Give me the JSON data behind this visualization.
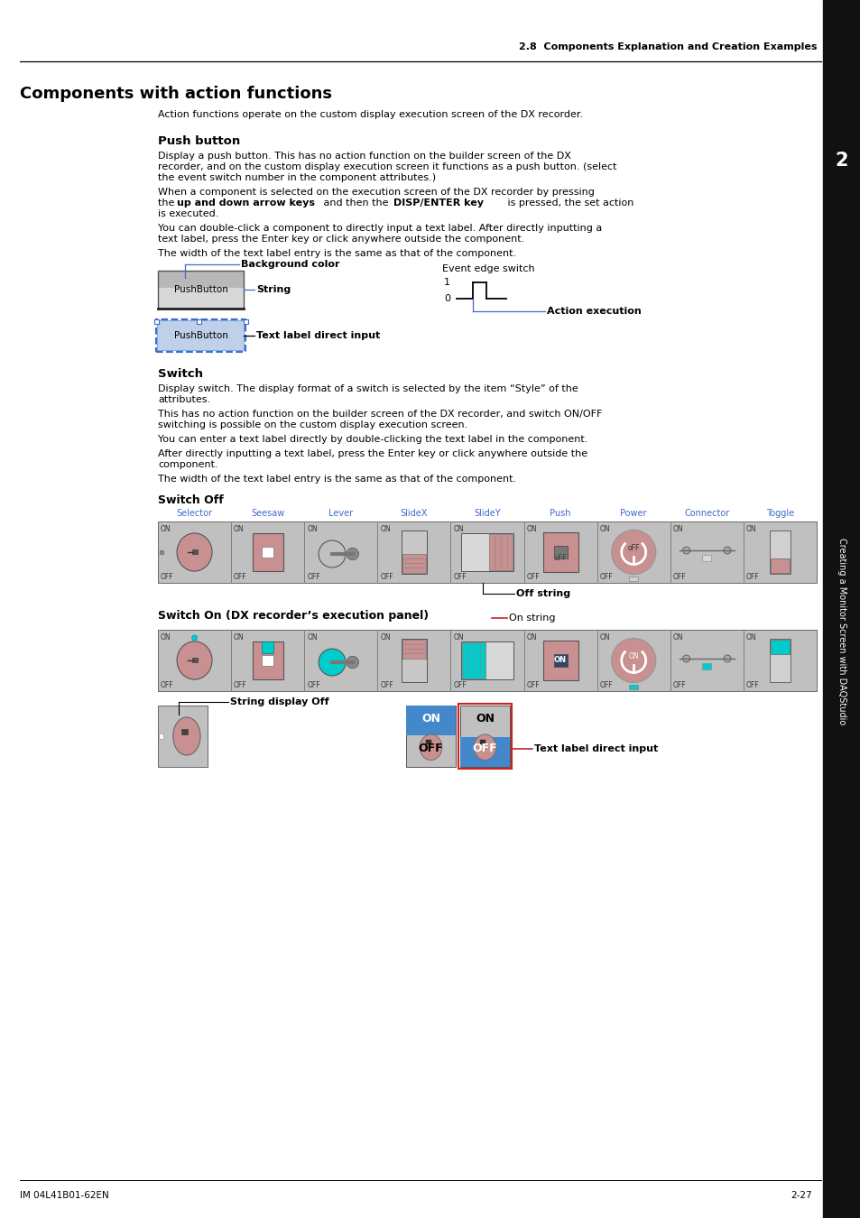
{
  "page_title": "2.8  Components Explanation and Creation Examples",
  "section_title": "Components with action functions",
  "intro_text": "Action functions operate on the custom display execution screen of the DX recorder.",
  "push_button_title": "Push button",
  "switch_title": "Switch",
  "switch_off_title": "Switch Off",
  "switch_on_title": "Switch On (DX recorder’s execution panel)",
  "switch_types": [
    "Selector",
    "Seesaw",
    "Lever",
    "SlideX",
    "SlideY",
    "Push",
    "Power",
    "Connector",
    "Toggle"
  ],
  "bg_color_label": "Background color",
  "string_label": "String",
  "event_edge_label": "Event edge switch",
  "action_exec_label": "Action execution",
  "text_direct_label": "Text label direct input",
  "off_string_label": "Off string",
  "on_string_label": "On string",
  "string_display_off_label": "String display Off",
  "text_label_direct_label": "Text label direct input",
  "page_num": "2-27",
  "doc_num": "IM 04L41B01-62EN",
  "sidebar_text": "Creating a Monitor Screen with DAQStudio",
  "chapter_num": "2",
  "bg_color": "#ffffff",
  "blue_color": "#4169cc",
  "pink_color": "#c89090",
  "cyan_color": "#00cccc",
  "gray_sw": "#b8b8b8"
}
